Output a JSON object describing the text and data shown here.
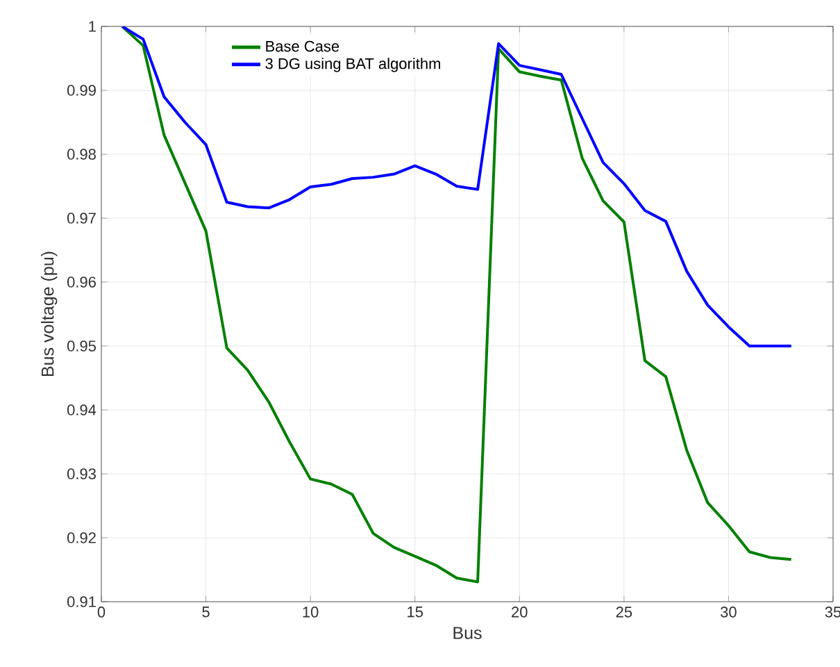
{
  "chart_data": {
    "type": "line",
    "xlabel": "Bus",
    "ylabel": "Bus voltage (pu)",
    "x": [
      1,
      2,
      3,
      4,
      5,
      6,
      7,
      8,
      9,
      10,
      11,
      12,
      13,
      14,
      15,
      16,
      17,
      18,
      19,
      20,
      21,
      22,
      23,
      24,
      25,
      26,
      27,
      28,
      29,
      30,
      31,
      32,
      33
    ],
    "series": [
      {
        "name": "Base Case",
        "color": "#008000",
        "values": [
          1.0,
          0.997,
          0.983,
          0.9755,
          0.968,
          0.9497,
          0.9462,
          0.9413,
          0.935,
          0.9292,
          0.9284,
          0.9268,
          0.9207,
          0.9185,
          0.9171,
          0.9157,
          0.9137,
          0.9131,
          0.9965,
          0.9929,
          0.9922,
          0.9916,
          0.9794,
          0.9727,
          0.9694,
          0.9477,
          0.9452,
          0.9337,
          0.9255,
          0.9219,
          0.9178,
          0.9169,
          0.9166
        ]
      },
      {
        "name": "3 DG using BAT algorithm",
        "color": "#0000ff",
        "values": [
          1.0,
          0.998,
          0.989,
          0.985,
          0.9815,
          0.9725,
          0.9718,
          0.9716,
          0.9729,
          0.9749,
          0.9753,
          0.9762,
          0.9764,
          0.9769,
          0.9782,
          0.9769,
          0.975,
          0.9745,
          0.9973,
          0.9939,
          0.9932,
          0.9925,
          0.9856,
          0.9787,
          0.9754,
          0.9712,
          0.9695,
          0.9617,
          0.9564,
          0.953,
          0.95,
          0.95,
          0.95
        ]
      }
    ],
    "xlim": [
      0,
      35
    ],
    "xticks": [
      0,
      5,
      10,
      15,
      20,
      25,
      30,
      35
    ],
    "ylim": [
      0.91,
      1
    ],
    "yticks": [
      0.91,
      0.92,
      0.93,
      0.94,
      0.95,
      0.96,
      0.97,
      0.98,
      0.99,
      1
    ],
    "grid": true,
    "legend": "top left",
    "line_style": "solid",
    "marker": "none"
  }
}
